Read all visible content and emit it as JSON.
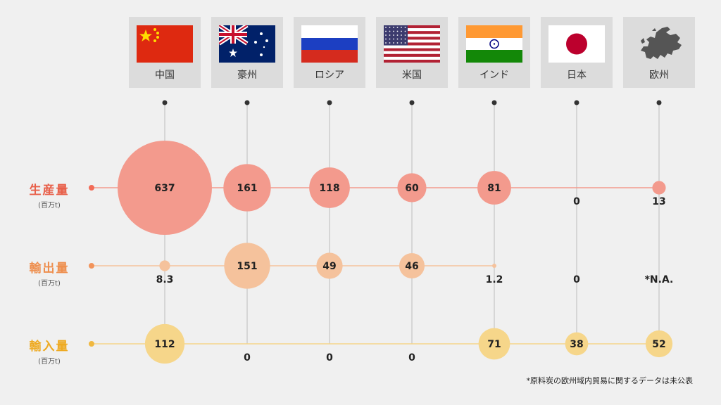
{
  "countries": [
    {
      "name": "中国",
      "flag": "china-flag"
    },
    {
      "name": "豪州",
      "flag": "australia-flag"
    },
    {
      "name": "ロシア",
      "flag": "russia-flag"
    },
    {
      "name": "米国",
      "flag": "usa-flag"
    },
    {
      "name": "インド",
      "flag": "india-flag"
    },
    {
      "name": "日本",
      "flag": "japan-flag"
    },
    {
      "name": "欧州",
      "flag": "europe-map-icon"
    }
  ],
  "rows": [
    {
      "label": "生産量",
      "unit": "(百万t)",
      "color": "#f39a8d",
      "dot": "#f26b57",
      "text": "#e8604a"
    },
    {
      "label": "輸出量",
      "unit": "(百万t)",
      "color": "#f5c29c",
      "dot": "#f2935a",
      "text": "#ee8f4f"
    },
    {
      "label": "輸入量",
      "unit": "(百万t)",
      "color": "#f6d68a",
      "dot": "#f0b840",
      "text": "#eeaa22"
    }
  ],
  "chart_data": {
    "type": "bubble",
    "categories": [
      "中国",
      "豪州",
      "ロシア",
      "米国",
      "インド",
      "日本",
      "欧州"
    ],
    "series": [
      {
        "name": "生産量",
        "values": [
          637,
          161,
          118,
          60,
          81,
          0,
          13
        ],
        "labels": [
          "637",
          "161",
          "118",
          "60",
          "81",
          "0",
          "13"
        ]
      },
      {
        "name": "輸出量",
        "values": [
          8.3,
          151,
          49,
          46,
          1.2,
          0,
          null
        ],
        "labels": [
          "8.3",
          "151",
          "49",
          "46",
          "1.2",
          "0",
          "*N.A."
        ]
      },
      {
        "name": "輸入量",
        "values": [
          112,
          0,
          0,
          0,
          71,
          38,
          52
        ],
        "labels": [
          "112",
          "0",
          "0",
          "0",
          "71",
          "38",
          "52"
        ]
      }
    ]
  },
  "footnote": "*原料炭の欧州域内貿易に関するデータは未公表"
}
